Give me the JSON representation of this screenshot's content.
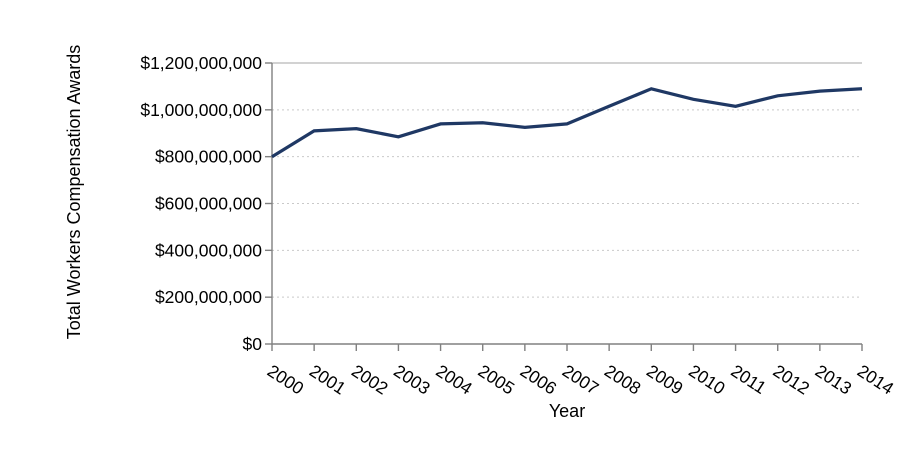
{
  "chart_data": {
    "type": "line",
    "title": "",
    "xlabel": "Year",
    "ylabel": "Total Workers Compensation Awards",
    "x": [
      "2000",
      "2001",
      "2002",
      "2003",
      "2004",
      "2005",
      "2006",
      "2007",
      "2008",
      "2009",
      "2010",
      "2011",
      "2012",
      "2013",
      "2014"
    ],
    "series": [
      {
        "name": "Total Workers Compensation Awards",
        "color": "#1f3864",
        "values": [
          800000000,
          910000000,
          920000000,
          885000000,
          940000000,
          945000000,
          925000000,
          940000000,
          1015000000,
          1090000000,
          1045000000,
          1015000000,
          1060000000,
          1080000000,
          1090000000
        ]
      }
    ],
    "ylim": [
      0,
      1200000000
    ],
    "ytick_interval": 200000000,
    "ytick_labels": [
      "$0",
      "$200,000,000",
      "$400,000,000",
      "$600,000,000",
      "$800,000,000",
      "$1,000,000,000",
      "$1,200,000,000"
    ],
    "grid": "horizontal-dashed",
    "legend": "none",
    "colors": {
      "background": "#ffffff",
      "axis": "#808080",
      "gridline": "#c9c9c9",
      "top_border": "#a6a6a6",
      "line": "#1f3864",
      "text": "#000000"
    }
  }
}
